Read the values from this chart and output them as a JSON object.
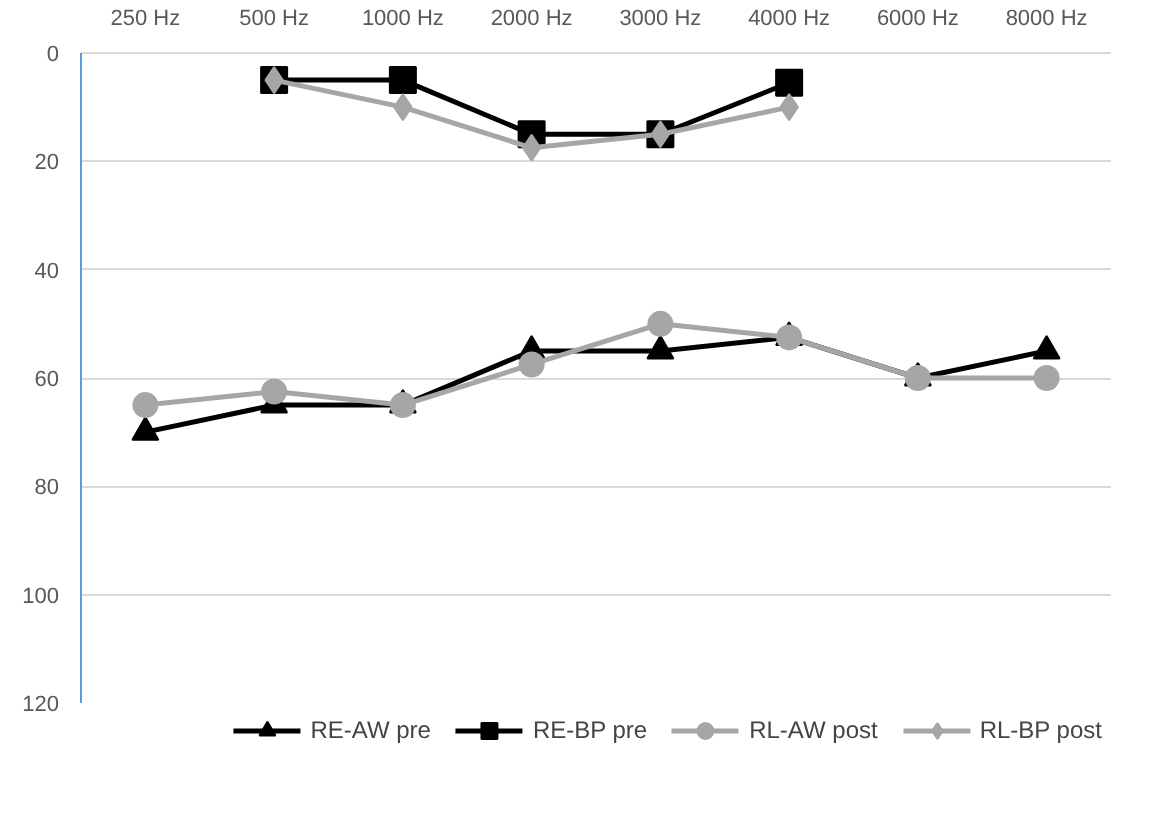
{
  "chart_data": {
    "type": "line",
    "categories": [
      "250 Hz",
      "500 Hz",
      "1000 Hz",
      "2000 Hz",
      "3000 Hz",
      "4000 Hz",
      "6000 Hz",
      "8000 Hz"
    ],
    "ylim": [
      120,
      0
    ],
    "yticks": [
      0,
      20,
      40,
      60,
      80,
      100,
      120
    ],
    "grid": "y",
    "legend": "bottom",
    "series": [
      {
        "name": "RE-AW pre",
        "color": "#000000",
        "marker": "triangle",
        "values": [
          70,
          65,
          65,
          55,
          55,
          52.5,
          60,
          55
        ]
      },
      {
        "name": "RE-BP pre",
        "color": "#000000",
        "marker": "square",
        "values": [
          null,
          5,
          5,
          15,
          15,
          5.5,
          null,
          null
        ]
      },
      {
        "name": "RL-AW post",
        "color": "#a6a6a6",
        "marker": "circle",
        "values": [
          65,
          62.5,
          65,
          57.5,
          50,
          52.5,
          60,
          60
        ]
      },
      {
        "name": "RL-BP post",
        "color": "#a6a6a6",
        "marker": "diamond",
        "values": [
          null,
          5,
          10,
          17.5,
          15,
          10,
          null,
          null
        ]
      }
    ]
  }
}
